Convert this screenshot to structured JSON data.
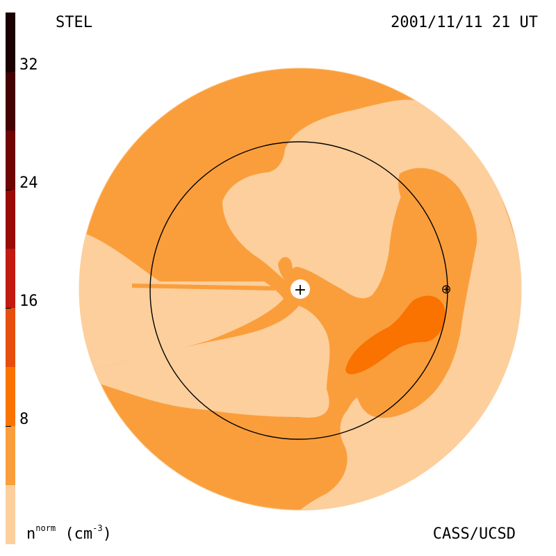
{
  "header": {
    "source": "STEL",
    "datetime": "2001/11/11 21 UT"
  },
  "footer": {
    "credit": "CASS/UCSD",
    "units_base": "n",
    "units_super": "norm",
    "units_rest": " (cm",
    "units_exp": "-3",
    "units_close": ")"
  },
  "colorbar": {
    "range": [
      0,
      36
    ],
    "ticks": [
      "8",
      "16",
      "24",
      "32"
    ],
    "levels": [
      {
        "from": 0,
        "to": 4,
        "color": "#fccf9c"
      },
      {
        "from": 4,
        "to": 8,
        "color": "#fa9e3c"
      },
      {
        "from": 8,
        "to": 12,
        "color": "#fa7200"
      },
      {
        "from": 12,
        "to": 16,
        "color": "#e64e0f"
      },
      {
        "from": 16,
        "to": 20,
        "color": "#c21a10"
      },
      {
        "from": 20,
        "to": 24,
        "color": "#990a05"
      },
      {
        "from": 24,
        "to": 28,
        "color": "#6e0503"
      },
      {
        "from": 28,
        "to": 32,
        "color": "#430201"
      },
      {
        "from": 32,
        "to": 36,
        "color": "#1a0000"
      }
    ]
  },
  "map": {
    "sun_symbol": "+",
    "earth_symbol": "⊕",
    "colors": {
      "low": "#fccf9c",
      "mid": "#fa9e3c",
      "high": "#fa7200"
    }
  }
}
